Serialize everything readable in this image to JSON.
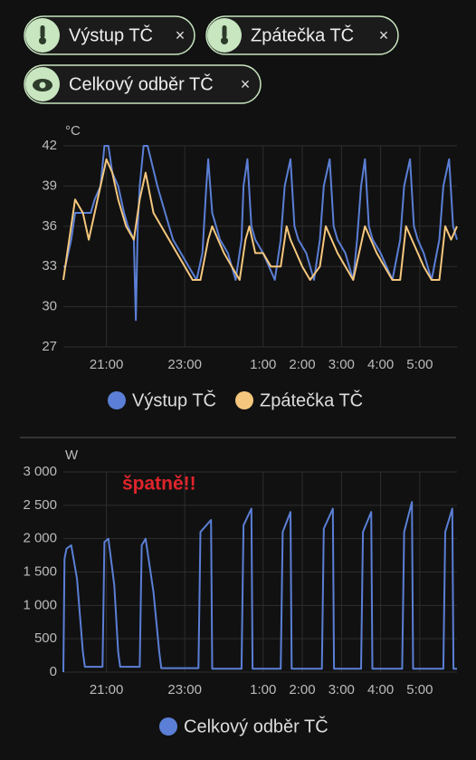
{
  "chips": [
    {
      "label": "Výstup TČ"
    },
    {
      "label": "Zpátečka TČ"
    },
    {
      "label": "Celkový odběr TČ"
    }
  ],
  "chart_data": [
    {
      "type": "line",
      "y_unit": "°C",
      "xlim": [
        19.9,
        29.95
      ],
      "ylim": [
        27,
        42
      ],
      "xticks": [
        {
          "value": 21,
          "label": "21:00"
        },
        {
          "value": 23,
          "label": "23:00"
        },
        {
          "value": 25,
          "label": "1:00"
        },
        {
          "value": 26,
          "label": "2:00"
        },
        {
          "value": 27,
          "label": "3:00"
        },
        {
          "value": 28,
          "label": "4:00"
        },
        {
          "value": 29,
          "label": "5:00"
        }
      ],
      "yticks": [
        27,
        30,
        33,
        36,
        39,
        42
      ],
      "grid": true,
      "series": [
        {
          "name": "Výstup TČ",
          "color": "#5b7fd6",
          "x": [
            19.9,
            19.95,
            20.1,
            20.2,
            20.35,
            20.6,
            20.7,
            20.85,
            20.95,
            21.05,
            21.15,
            21.3,
            21.45,
            21.55,
            21.7,
            21.75,
            21.8,
            21.85,
            21.95,
            22.05,
            22.3,
            22.5,
            22.7,
            22.9,
            23.1,
            23.3,
            23.45,
            23.55,
            23.6,
            23.7,
            23.8,
            23.9,
            24.1,
            24.3,
            24.45,
            24.5,
            24.6,
            24.7,
            24.8,
            25.0,
            25.3,
            25.45,
            25.55,
            25.7,
            25.8,
            25.9,
            26.1,
            26.3,
            26.45,
            26.55,
            26.7,
            26.8,
            26.9,
            27.1,
            27.3,
            27.4,
            27.5,
            27.6,
            27.7,
            27.8,
            28.0,
            28.3,
            28.5,
            28.6,
            28.75,
            28.85,
            28.95,
            29.1,
            29.3,
            29.5,
            29.6,
            29.75,
            29.85,
            29.95
          ],
          "values": [
            33,
            33,
            35,
            37,
            37,
            37,
            38,
            39,
            42,
            42,
            40,
            39,
            37,
            36,
            35,
            29,
            36,
            39,
            42,
            42,
            39,
            37,
            35,
            34,
            33,
            32,
            34,
            39,
            41,
            37,
            36,
            35,
            34,
            32,
            35,
            39,
            41,
            36,
            35,
            34,
            32,
            35,
            39,
            41,
            36,
            35,
            34,
            32,
            35,
            39,
            41,
            36,
            35,
            34,
            32,
            35,
            39,
            41,
            36,
            35,
            34,
            32,
            35,
            39,
            41,
            36,
            35,
            34,
            32,
            35,
            39,
            41,
            36,
            35
          ]
        },
        {
          "name": "Zpátečka TČ",
          "color": "#f5c77e",
          "x": [
            19.9,
            20.0,
            20.2,
            20.4,
            20.55,
            20.7,
            20.85,
            21.0,
            21.15,
            21.3,
            21.5,
            21.7,
            21.85,
            22.0,
            22.2,
            22.4,
            22.6,
            22.8,
            23.0,
            23.2,
            23.4,
            23.6,
            23.7,
            23.85,
            24.0,
            24.2,
            24.4,
            24.55,
            24.65,
            24.8,
            25.0,
            25.2,
            25.45,
            25.6,
            25.7,
            25.85,
            26.0,
            26.2,
            26.45,
            26.6,
            26.75,
            26.9,
            27.1,
            27.3,
            27.45,
            27.6,
            27.75,
            27.9,
            28.1,
            28.3,
            28.5,
            28.65,
            28.8,
            28.95,
            29.1,
            29.3,
            29.5,
            29.65,
            29.8,
            29.95
          ],
          "values": [
            32,
            34,
            38,
            37,
            35,
            37,
            39,
            41,
            40,
            38,
            36,
            35,
            38,
            40,
            37,
            36,
            35,
            34,
            33,
            32,
            32,
            35,
            36,
            35,
            34,
            33,
            32,
            35,
            36,
            34,
            34,
            33,
            33,
            36,
            35,
            34,
            33,
            32,
            33,
            36,
            35,
            34,
            33,
            32,
            34,
            36,
            35,
            34,
            33,
            32,
            32,
            36,
            35,
            34,
            33,
            32,
            32,
            36,
            35,
            36
          ]
        }
      ]
    },
    {
      "type": "line",
      "y_unit": "W",
      "annotation": "špatně!!",
      "xlim": [
        19.9,
        29.95
      ],
      "ylim": [
        0,
        3000
      ],
      "xticks": [
        {
          "value": 21,
          "label": "21:00"
        },
        {
          "value": 23,
          "label": "23:00"
        },
        {
          "value": 25,
          "label": "1:00"
        },
        {
          "value": 26,
          "label": "2:00"
        },
        {
          "value": 27,
          "label": "3:00"
        },
        {
          "value": 28,
          "label": "4:00"
        },
        {
          "value": 29,
          "label": "5:00"
        }
      ],
      "yticks": [
        0,
        500,
        {
          "value": 1000,
          "label": "1 000"
        },
        {
          "value": 1500,
          "label": "1 500"
        },
        {
          "value": 2000,
          "label": "2 000"
        },
        {
          "value": 2500,
          "label": "2 500"
        },
        {
          "value": 3000,
          "label": "3 000"
        }
      ],
      "grid": true,
      "series": [
        {
          "name": "Celkový odběr TČ",
          "color": "#5b7fd6",
          "x": [
            19.9,
            19.93,
            19.98,
            20.1,
            20.25,
            20.4,
            20.45,
            20.9,
            20.95,
            21.05,
            21.2,
            21.3,
            21.35,
            21.85,
            21.9,
            22.0,
            22.2,
            22.35,
            22.4,
            23.35,
            23.4,
            23.67,
            23.7,
            24.45,
            24.5,
            24.7,
            24.73,
            25.45,
            25.5,
            25.7,
            25.73,
            26.5,
            26.55,
            26.78,
            26.81,
            27.5,
            27.55,
            27.76,
            27.79,
            28.55,
            28.6,
            28.8,
            28.83,
            29.6,
            29.65,
            29.83,
            29.86,
            29.95
          ],
          "values": [
            0,
            1700,
            1850,
            1900,
            1400,
            300,
            80,
            80,
            1950,
            2000,
            1300,
            300,
            80,
            80,
            1900,
            2000,
            1200,
            300,
            60,
            60,
            2100,
            2280,
            50,
            50,
            2200,
            2450,
            50,
            50,
            2100,
            2400,
            50,
            50,
            2150,
            2450,
            50,
            50,
            2100,
            2400,
            50,
            50,
            2100,
            2550,
            50,
            50,
            2100,
            2450,
            50,
            50
          ]
        }
      ]
    }
  ]
}
